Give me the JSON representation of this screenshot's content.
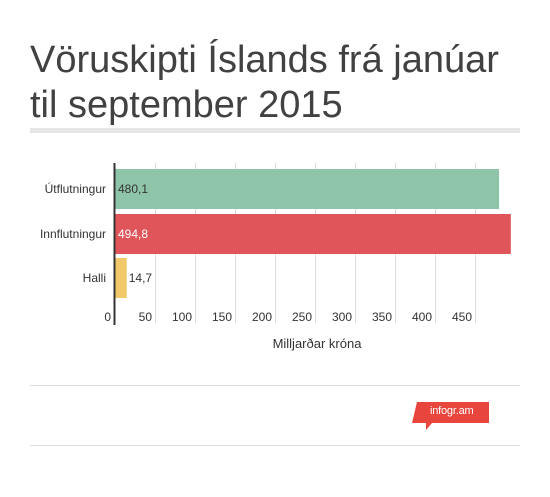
{
  "title": "Vöruskipti Íslands frá janúar til september 2015",
  "brand": {
    "label": "infogr.am",
    "color": "#e8453c"
  },
  "chart_data": {
    "type": "bar",
    "orientation": "horizontal",
    "categories": [
      "Útflutningur",
      "Innflutningur",
      "Halli"
    ],
    "values": [
      480.1,
      494.8,
      14.7
    ],
    "value_labels": [
      "480,1",
      "494,8",
      "14,7"
    ],
    "colors": [
      "#8ec4a8",
      "#e0555a",
      "#f1c96b"
    ],
    "xlabel": "Milljarðar króna",
    "ylabel": "",
    "xlim": [
      0,
      500
    ],
    "x_ticks": [
      0,
      50,
      100,
      150,
      200,
      250,
      300,
      350,
      400,
      450
    ],
    "grid": true,
    "legend": "none"
  }
}
